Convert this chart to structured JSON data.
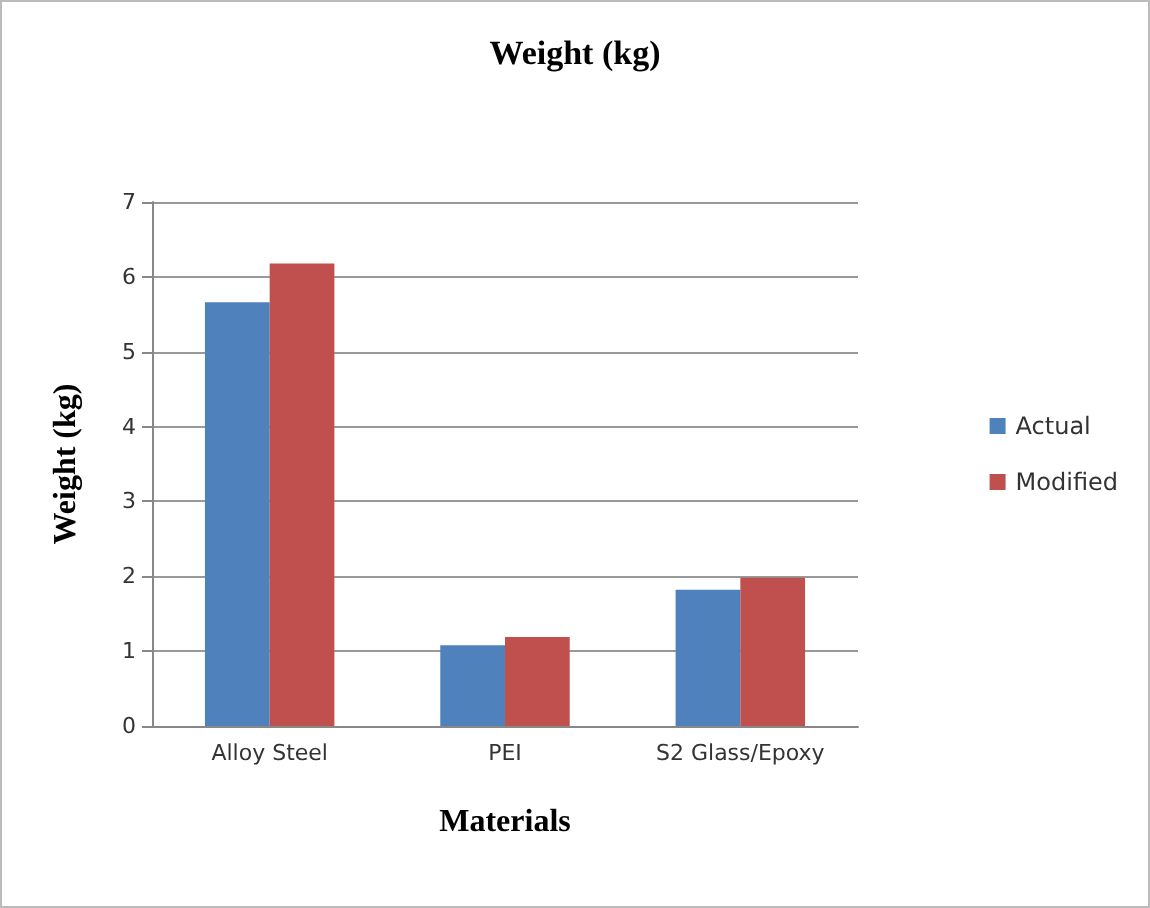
{
  "chart_data": {
    "type": "bar",
    "title": "Weight (kg)",
    "xlabel": "Materials",
    "ylabel": "Weight (kg)",
    "categories": [
      "Alloy Steel",
      "PEI",
      "S2 Glass/Epoxy"
    ],
    "series": [
      {
        "name": "Actual",
        "color": "#4f81bd",
        "values": [
          5.66,
          1.08,
          1.82
        ]
      },
      {
        "name": "Modified",
        "color": "#c0504d",
        "values": [
          6.18,
          1.19,
          1.98
        ]
      }
    ],
    "ylim": [
      0,
      7
    ],
    "yticks": [
      0,
      1,
      2,
      3,
      4,
      5,
      6,
      7
    ],
    "grid": "y",
    "legend": "right"
  }
}
